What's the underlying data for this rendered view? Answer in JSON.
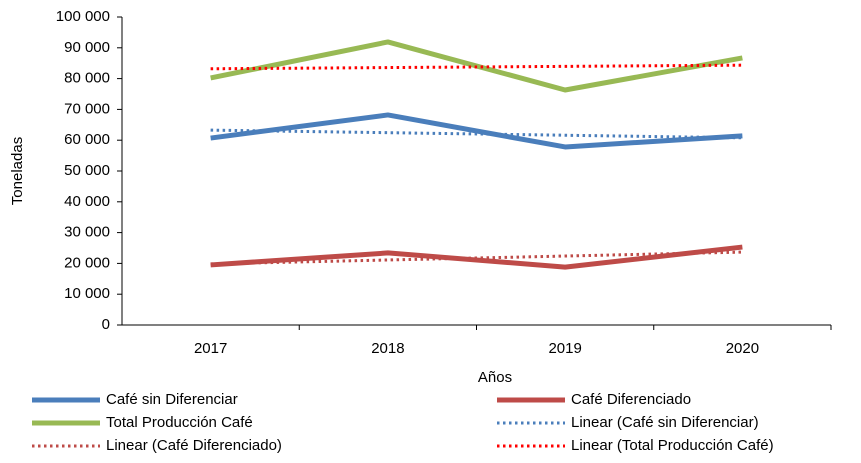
{
  "chart_data": {
    "type": "line",
    "x_label": "Años",
    "y_label": "Toneladas",
    "categories": [
      "2017",
      "2018",
      "2019",
      "2020"
    ],
    "ylim": [
      0,
      100000
    ],
    "yticks": [
      0,
      {
        "value": 10000,
        "label": "10 000"
      },
      {
        "value": 20000,
        "label": "20 000"
      },
      {
        "value": 30000,
        "label": "30 000"
      },
      {
        "value": 40000,
        "label": "40 000"
      },
      {
        "value": 50000,
        "label": "50 000"
      },
      {
        "value": 60000,
        "label": "60 000"
      },
      {
        "value": 70000,
        "label": "70 000"
      },
      {
        "value": 80000,
        "label": "80 000"
      },
      {
        "value": 90000,
        "label": "90 000"
      },
      {
        "value": 100000,
        "label": "100 000"
      }
    ],
    "grid": false,
    "legend": "bottom",
    "series": [
      {
        "name": "Café sin Diferenciar",
        "color": "#4a7ebb",
        "style": "solid",
        "values": [
          60700,
          68200,
          57800,
          61400
        ]
      },
      {
        "name": "Café Diferenciado",
        "color": "#be4b48",
        "style": "solid",
        "values": [
          19500,
          23400,
          18800,
          25300
        ]
      },
      {
        "name": "Total Producción Café",
        "color": "#98b954",
        "style": "solid",
        "values": [
          80200,
          91900,
          76300,
          86700
        ]
      },
      {
        "name": "Linear (Café sin Diferenciar)",
        "color": "#4a7ebb",
        "style": "dotted",
        "values": [
          63270,
          62440,
          61610,
          60780
        ]
      },
      {
        "name": "Linear (Café Diferenciado)",
        "color": "#be4b48",
        "style": "dotted",
        "values": [
          19830,
          21110,
          22390,
          23670
        ]
      },
      {
        "name": "Linear (Total Producción Café)",
        "color": "#ff0000",
        "style": "dotted",
        "values": [
          83190,
          83580,
          83970,
          84360
        ]
      }
    ]
  }
}
